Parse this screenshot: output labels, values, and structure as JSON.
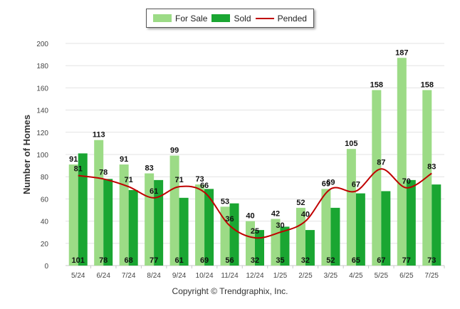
{
  "chart_data": {
    "type": "bar",
    "ylabel": "Number of Homes",
    "xlabel": "",
    "ylim": [
      0,
      200
    ],
    "yticks": [
      0,
      20,
      40,
      60,
      80,
      100,
      120,
      140,
      160,
      180,
      200
    ],
    "grid": true,
    "legend_position": "top-center",
    "categories": [
      "5/24",
      "6/24",
      "7/24",
      "8/24",
      "9/24",
      "10/24",
      "11/24",
      "12/24",
      "1/25",
      "2/25",
      "3/25",
      "4/25",
      "5/25",
      "6/25",
      "7/25"
    ],
    "series": [
      {
        "name": "For Sale",
        "kind": "bar",
        "color": "#9cdb86",
        "values": [
          91,
          113,
          91,
          83,
          99,
          73,
          53,
          40,
          42,
          52,
          69,
          105,
          158,
          187,
          158
        ]
      },
      {
        "name": "Sold",
        "kind": "bar",
        "color": "#1aa632",
        "values": [
          101,
          78,
          68,
          77,
          61,
          69,
          56,
          32,
          35,
          32,
          52,
          65,
          67,
          77,
          73
        ]
      },
      {
        "name": "Pended",
        "kind": "line",
        "color": "#c00000",
        "values": [
          81,
          78,
          71,
          61,
          71,
          66,
          36,
          25,
          30,
          40,
          69,
          67,
          87,
          70,
          83
        ]
      }
    ]
  },
  "legend": {
    "for_sale": "For Sale",
    "sold": "Sold",
    "pended": "Pended"
  },
  "footer": {
    "copyright": "Copyright © Trendgraphix, Inc."
  }
}
